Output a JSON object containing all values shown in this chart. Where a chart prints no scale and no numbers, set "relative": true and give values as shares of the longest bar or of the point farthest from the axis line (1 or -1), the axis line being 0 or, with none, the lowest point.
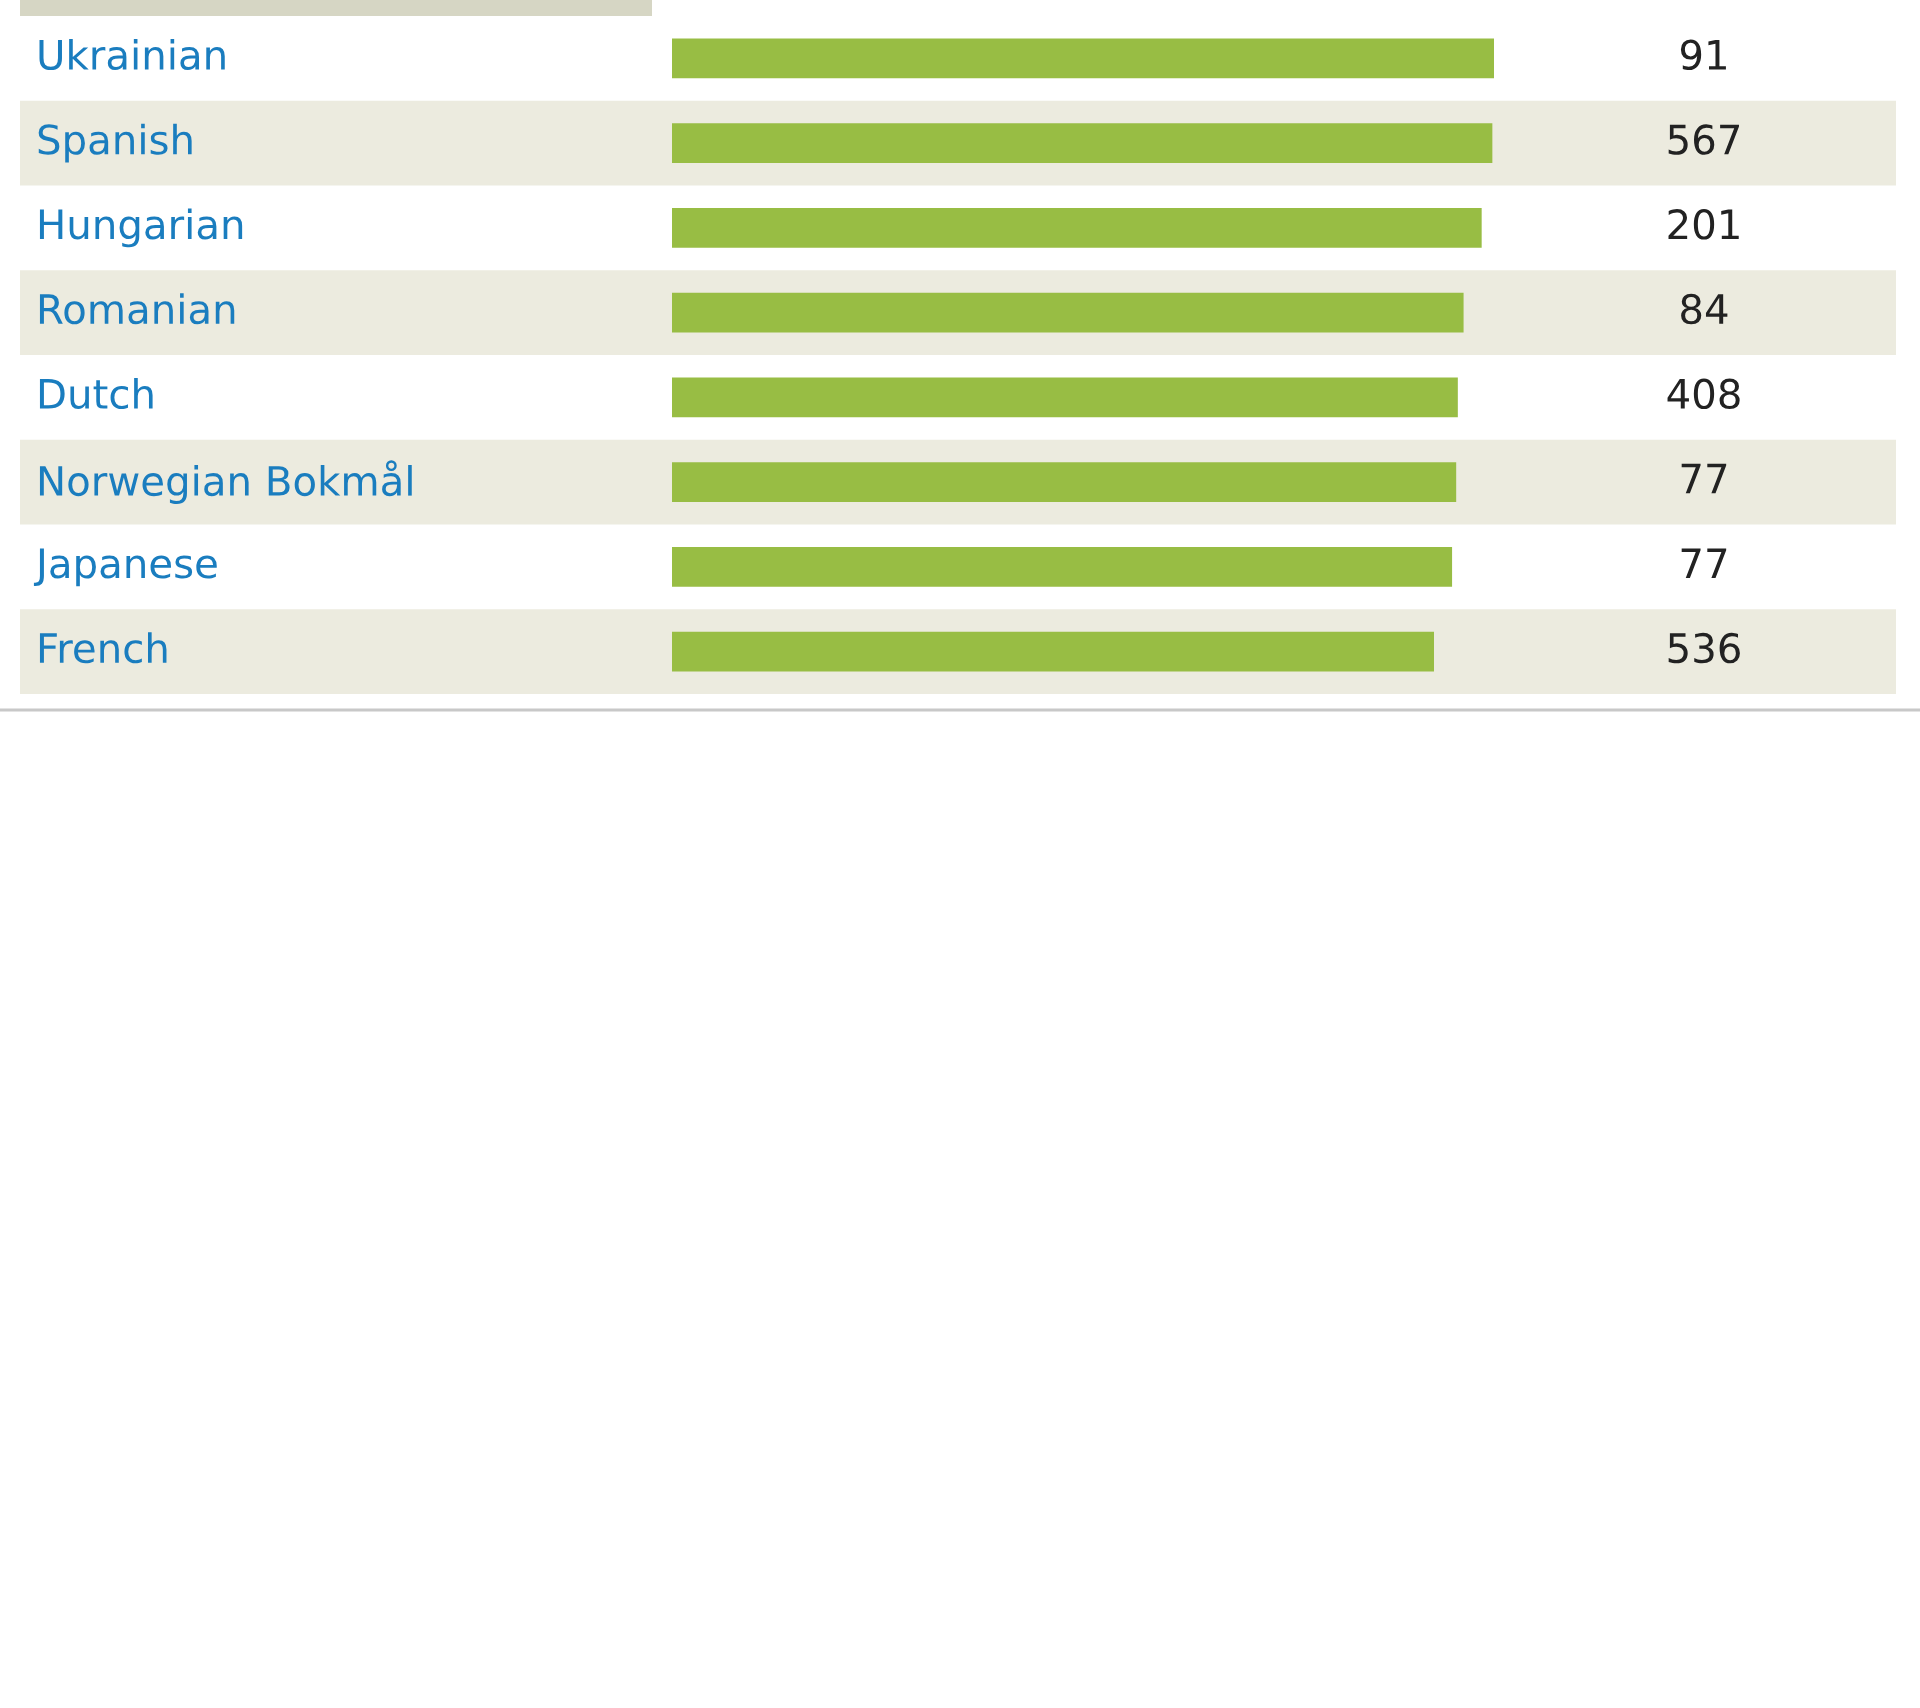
{
  "chart_data": {
    "type": "bar",
    "orientation": "horizontal",
    "relative": true,
    "categories": [
      "Ukrainian",
      "Spanish",
      "Hungarian",
      "Romanian",
      "Dutch",
      "Norwegian Bokmål",
      "Japanese",
      "French"
    ],
    "values": [
      1.0,
      0.998,
      0.985,
      0.963,
      0.956,
      0.954,
      0.949,
      0.927
    ],
    "annotations": [
      "91",
      "567",
      "201",
      "84",
      "408",
      "77",
      "77",
      "536"
    ],
    "color": "#98bd44"
  }
}
